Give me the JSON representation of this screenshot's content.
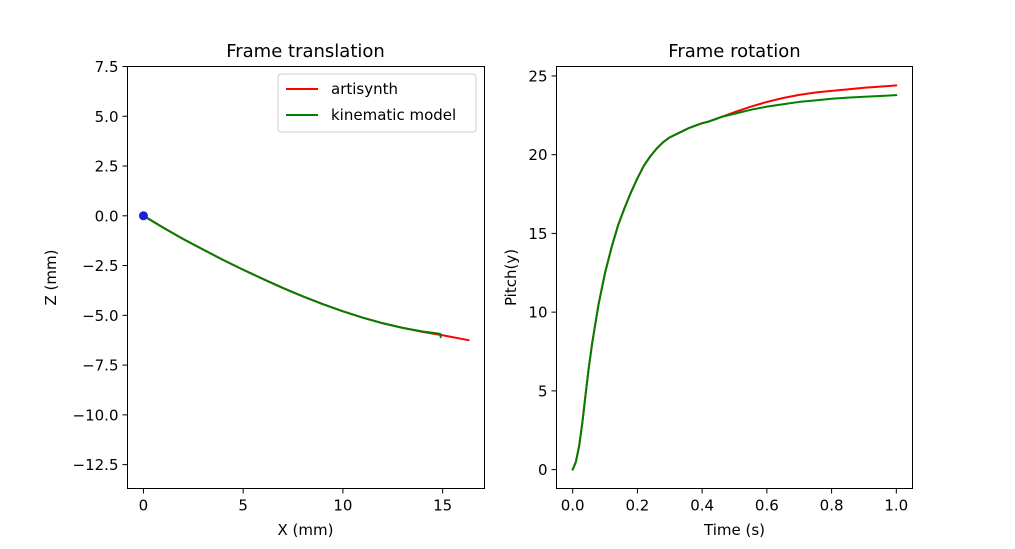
{
  "chart_data": [
    {
      "type": "line",
      "title": "Frame translation",
      "xlabel": "X (mm)",
      "ylabel": "Z (mm)",
      "xlim": [
        -0.8,
        17.1
      ],
      "ylim": [
        -13.7,
        7.5
      ],
      "xticks": [
        0,
        5,
        10,
        15
      ],
      "yticks": [
        7.5,
        5.0,
        2.5,
        0.0,
        -2.5,
        -5.0,
        -7.5,
        -10.0,
        -12.5
      ],
      "ytick_labels": [
        "7.5",
        "5.0",
        "2.5",
        "0.0",
        "−2.5",
        "−5.0",
        "−7.5",
        "−10.0",
        "−12.5"
      ],
      "xtick_labels": [
        "0",
        "5",
        "10",
        "15"
      ],
      "grid": false,
      "legend": "top-right",
      "marker": {
        "x": 0,
        "y": 0,
        "color": "#1f1fd6"
      },
      "series": [
        {
          "name": "artisynth",
          "color": "#ff0000",
          "x": [
            0,
            1,
            2,
            3,
            4,
            5,
            6,
            7,
            8,
            9,
            10,
            11,
            12,
            13,
            14,
            15,
            16.3
          ],
          "y": [
            0,
            -0.6,
            -1.17,
            -1.7,
            -2.22,
            -2.71,
            -3.18,
            -3.63,
            -4.05,
            -4.44,
            -4.8,
            -5.12,
            -5.4,
            -5.63,
            -5.83,
            -6.0,
            -6.25
          ]
        },
        {
          "name": "kinematic model",
          "color": "#008000",
          "x": [
            0,
            1,
            2,
            3,
            4,
            5,
            6,
            7,
            8,
            9,
            10,
            11,
            12,
            13,
            14,
            14.8,
            14.9,
            14.9
          ],
          "y": [
            0,
            -0.6,
            -1.17,
            -1.7,
            -2.22,
            -2.71,
            -3.18,
            -3.63,
            -4.05,
            -4.44,
            -4.8,
            -5.12,
            -5.4,
            -5.63,
            -5.81,
            -5.92,
            -5.95,
            -6.1
          ]
        }
      ]
    },
    {
      "type": "line",
      "title": "Frame rotation",
      "xlabel": "Time (s)",
      "ylabel": "Pitch(y)",
      "xlim": [
        -0.05,
        1.05
      ],
      "ylim": [
        -1.2,
        25.6
      ],
      "xticks": [
        0.0,
        0.2,
        0.4,
        0.6,
        0.8,
        1.0
      ],
      "yticks": [
        0,
        5,
        10,
        15,
        20,
        25
      ],
      "xtick_labels": [
        "0.0",
        "0.2",
        "0.4",
        "0.6",
        "0.8",
        "1.0"
      ],
      "ytick_labels": [
        "0",
        "5",
        "10",
        "15",
        "20",
        "25"
      ],
      "grid": false,
      "series": [
        {
          "name": "artisynth",
          "color": "#ff0000",
          "x": [
            0,
            0.01,
            0.02,
            0.03,
            0.04,
            0.05,
            0.06,
            0.08,
            0.1,
            0.12,
            0.14,
            0.16,
            0.18,
            0.2,
            0.22,
            0.24,
            0.26,
            0.28,
            0.3,
            0.32,
            0.34,
            0.36,
            0.38,
            0.4,
            0.42,
            0.44,
            0.46,
            0.5,
            0.55,
            0.6,
            0.65,
            0.7,
            0.75,
            0.8,
            0.85,
            0.9,
            0.95,
            1.0
          ],
          "y": [
            0,
            0.5,
            1.5,
            3.0,
            4.8,
            6.5,
            8.0,
            10.5,
            12.5,
            14.1,
            15.5,
            16.6,
            17.6,
            18.5,
            19.3,
            19.9,
            20.4,
            20.8,
            21.1,
            21.3,
            21.5,
            21.7,
            21.85,
            22.0,
            22.1,
            22.25,
            22.4,
            22.7,
            23.05,
            23.35,
            23.6,
            23.8,
            23.95,
            24.05,
            24.15,
            24.25,
            24.32,
            24.4
          ]
        },
        {
          "name": "kinematic model",
          "color": "#008000",
          "x": [
            0,
            0.01,
            0.02,
            0.03,
            0.04,
            0.05,
            0.06,
            0.08,
            0.1,
            0.12,
            0.14,
            0.16,
            0.18,
            0.2,
            0.22,
            0.24,
            0.26,
            0.28,
            0.3,
            0.32,
            0.34,
            0.36,
            0.38,
            0.4,
            0.42,
            0.44,
            0.46,
            0.5,
            0.55,
            0.6,
            0.65,
            0.7,
            0.75,
            0.8,
            0.85,
            0.9,
            0.95,
            1.0
          ],
          "y": [
            0,
            0.5,
            1.5,
            3.0,
            4.8,
            6.5,
            8.0,
            10.5,
            12.5,
            14.1,
            15.5,
            16.6,
            17.6,
            18.5,
            19.3,
            19.9,
            20.4,
            20.8,
            21.1,
            21.3,
            21.5,
            21.7,
            21.85,
            22.0,
            22.1,
            22.25,
            22.4,
            22.6,
            22.85,
            23.05,
            23.2,
            23.35,
            23.45,
            23.55,
            23.62,
            23.68,
            23.73,
            23.78
          ]
        }
      ]
    }
  ]
}
